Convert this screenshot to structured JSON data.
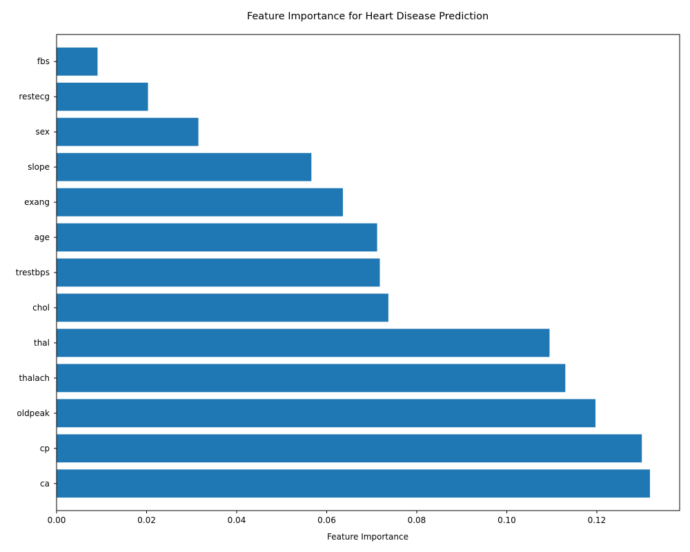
{
  "chart_data": {
    "type": "bar",
    "orientation": "horizontal",
    "title": "Feature Importance for Heart Disease Prediction",
    "xlabel": "Feature Importance",
    "ylabel": "",
    "categories": [
      "ca",
      "cp",
      "oldpeak",
      "thalach",
      "thal",
      "chol",
      "trestbps",
      "age",
      "exang",
      "slope",
      "sex",
      "restecg",
      "fbs"
    ],
    "values": [
      0.1318,
      0.13,
      0.1197,
      0.113,
      0.1095,
      0.0737,
      0.0718,
      0.0712,
      0.0636,
      0.0566,
      0.0315,
      0.0203,
      0.0091
    ],
    "xlim": [
      0,
      0.1384
    ],
    "xticks": [
      0.0,
      0.02,
      0.04,
      0.06,
      0.08,
      0.1,
      0.12
    ],
    "xtick_labels": [
      "0.00",
      "0.02",
      "0.04",
      "0.06",
      "0.08",
      "0.10",
      "0.12"
    ],
    "grid": false,
    "legend": "none",
    "bar_color": "#1f77b4"
  }
}
